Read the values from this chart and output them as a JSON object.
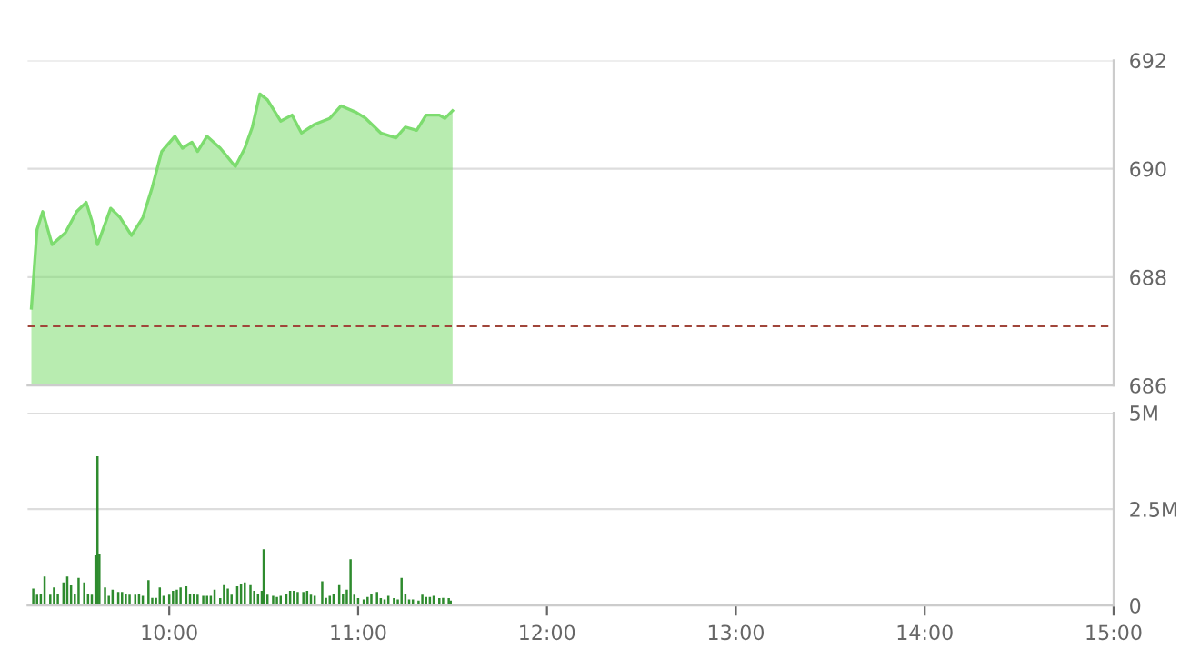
{
  "chart_data": [
    {
      "type": "area",
      "color": "#7ddc6f",
      "x": [
        9.27,
        9.3,
        9.33,
        9.38,
        9.45,
        9.51,
        9.56,
        9.59,
        9.62,
        9.69,
        9.74,
        9.8,
        9.86,
        9.91,
        9.96,
        10.03,
        10.07,
        10.12,
        10.15,
        10.2,
        10.27,
        10.35,
        10.4,
        10.44,
        10.48,
        10.52,
        10.59,
        10.65,
        10.7,
        10.77,
        10.85,
        10.91,
        10.99,
        11.04,
        11.12,
        11.2,
        11.25,
        11.31,
        11.36,
        11.43,
        11.46,
        11.5
      ],
      "values": [
        687.43,
        688.88,
        689.21,
        688.6,
        688.82,
        689.21,
        689.38,
        689.04,
        688.6,
        689.27,
        689.1,
        688.77,
        689.1,
        689.66,
        690.32,
        690.6,
        690.38,
        690.49,
        690.32,
        690.6,
        690.38,
        690.04,
        690.38,
        690.77,
        691.38,
        691.27,
        690.88,
        690.99,
        690.66,
        690.82,
        690.93,
        691.16,
        691.04,
        690.93,
        690.66,
        690.57,
        690.77,
        690.71,
        690.99,
        690.99,
        690.93,
        691.07
      ],
      "xlim": [
        9.25,
        15
      ],
      "ylim": [
        686,
        692
      ],
      "yticks": [
        686,
        688,
        690,
        692
      ],
      "grid": "y",
      "tick_labels": "y",
      "ref_lines": [
        {
          "axis": "y",
          "value": 687.1,
          "color": "#a0453a",
          "line_style": "dashed"
        }
      ]
    },
    {
      "type": "bar",
      "color": "#2e8b2e",
      "x": [
        9.28,
        9.3,
        9.32,
        9.34,
        9.37,
        9.39,
        9.41,
        9.44,
        9.46,
        9.48,
        9.5,
        9.52,
        9.55,
        9.57,
        9.59,
        9.61,
        9.62,
        9.63,
        9.66,
        9.68,
        9.7,
        9.73,
        9.75,
        9.77,
        9.79,
        9.82,
        9.84,
        9.86,
        9.89,
        9.91,
        9.93,
        9.95,
        9.97,
        10.0,
        10.02,
        10.04,
        10.06,
        10.09,
        10.11,
        10.13,
        10.15,
        10.18,
        10.2,
        10.22,
        10.24,
        10.27,
        10.29,
        10.31,
        10.33,
        10.36,
        10.38,
        10.4,
        10.43,
        10.45,
        10.47,
        10.49,
        10.5,
        10.52,
        10.55,
        10.57,
        10.59,
        10.62,
        10.64,
        10.66,
        10.68,
        10.71,
        10.73,
        10.75,
        10.77,
        10.81,
        10.83,
        10.85,
        10.87,
        10.9,
        10.92,
        10.94,
        10.96,
        10.98,
        11.0,
        11.03,
        11.05,
        11.07,
        11.1,
        11.12,
        11.14,
        11.16,
        11.19,
        11.21,
        11.23,
        11.25,
        11.27,
        11.29,
        11.32,
        11.34,
        11.36,
        11.38,
        11.4,
        11.43,
        11.45,
        11.48,
        11.49
      ],
      "values": [
        0.44,
        0.28,
        0.31,
        0.75,
        0.28,
        0.47,
        0.31,
        0.6,
        0.75,
        0.52,
        0.31,
        0.72,
        0.6,
        0.31,
        0.28,
        1.3,
        3.87,
        1.35,
        0.47,
        0.25,
        0.41,
        0.35,
        0.35,
        0.31,
        0.28,
        0.28,
        0.31,
        0.25,
        0.66,
        0.2,
        0.2,
        0.47,
        0.25,
        0.28,
        0.38,
        0.41,
        0.47,
        0.5,
        0.31,
        0.31,
        0.28,
        0.25,
        0.25,
        0.25,
        0.41,
        0.19,
        0.53,
        0.44,
        0.28,
        0.5,
        0.57,
        0.6,
        0.53,
        0.38,
        0.31,
        0.38,
        1.46,
        0.28,
        0.25,
        0.22,
        0.25,
        0.31,
        0.38,
        0.38,
        0.35,
        0.35,
        0.38,
        0.28,
        0.25,
        0.63,
        0.2,
        0.25,
        0.31,
        0.53,
        0.31,
        0.41,
        1.2,
        0.28,
        0.19,
        0.16,
        0.22,
        0.31,
        0.35,
        0.19,
        0.16,
        0.25,
        0.19,
        0.16,
        0.72,
        0.31,
        0.16,
        0.16,
        0.13,
        0.28,
        0.22,
        0.22,
        0.25,
        0.19,
        0.2,
        0.19,
        0.13
      ],
      "xlim": [
        9.25,
        15
      ],
      "xticks": [
        {
          "value": 10,
          "label": "10:00"
        },
        {
          "value": 11,
          "label": "11:00"
        },
        {
          "value": 12,
          "label": "12:00"
        },
        {
          "value": 13,
          "label": "13:00"
        },
        {
          "value": 14,
          "label": "14:00"
        },
        {
          "value": 15,
          "label": "15:00"
        }
      ],
      "ylim": [
        0,
        5
      ],
      "yticks": [
        0,
        {
          "value": 2.5,
          "label": "2.5M"
        },
        {
          "value": 5,
          "label": "5M"
        }
      ],
      "grid": "y"
    }
  ]
}
